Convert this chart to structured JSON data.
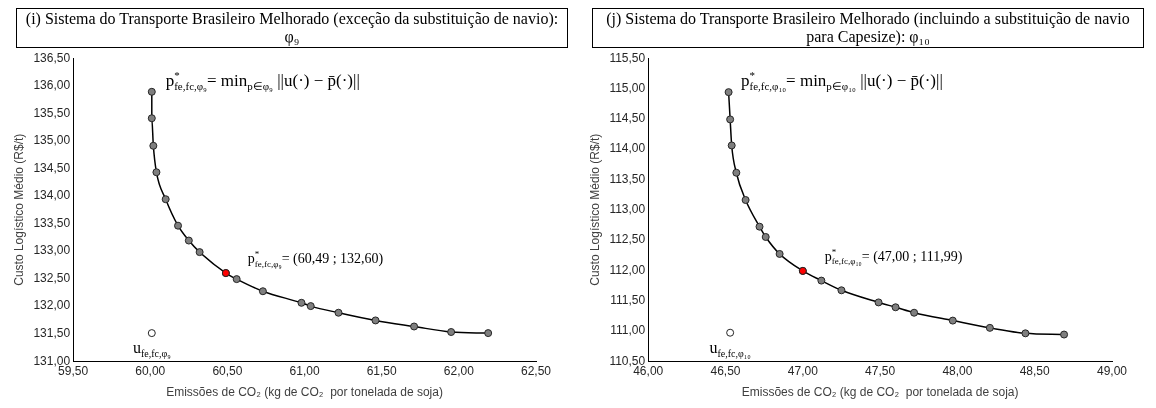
{
  "chart_data": [
    {
      "type": "line",
      "title": "(i) Sistema do Transporte Brasileiro Melhorado (exceção da substituição de navio): φ₉",
      "xlabel": "Emissões de CO₂ (kg de CO₂  por tonelada de soja)",
      "ylabel": "Custo Logístico Médio (R$/t)",
      "xlim": [
        59.5,
        62.5
      ],
      "xticks": [
        {
          "value": 59.5,
          "label": "59,50"
        },
        {
          "value": 60,
          "label": "60,00"
        },
        {
          "value": 60.5,
          "label": "60,50"
        },
        {
          "value": 61,
          "label": "61,00"
        },
        {
          "value": 61.5,
          "label": "61,50"
        },
        {
          "value": 62,
          "label": "62,00"
        },
        {
          "value": 62.5,
          "label": "62,50"
        }
      ],
      "ylim": [
        131,
        136.5
      ],
      "yticks": [
        {
          "value": 131,
          "label": "131,00"
        },
        {
          "value": 131.5,
          "label": "131,50"
        },
        {
          "value": 132,
          "label": "132,00"
        },
        {
          "value": 132.5,
          "label": "132,50"
        },
        {
          "value": 133,
          "label": "133,00"
        },
        {
          "value": 133.5,
          "label": "133,50"
        },
        {
          "value": 134,
          "label": "134,00"
        },
        {
          "value": 134.5,
          "label": "134,50"
        },
        {
          "value": 135,
          "label": "135,00"
        },
        {
          "value": 135.5,
          "label": "135,50"
        },
        {
          "value": 136,
          "label": "136,00"
        },
        {
          "value": 136.5,
          "label": "136,50"
        }
      ],
      "marker": "circle",
      "series": [
        {
          "color": "#7f7f7f",
          "x": [
            60.01,
            60.01,
            60.02,
            60.04,
            60.1,
            60.18,
            60.25,
            60.32,
            60.49,
            60.56,
            60.73,
            60.98,
            61.04,
            61.22,
            61.46,
            61.71,
            61.95,
            62.19
          ],
          "values": [
            135.89,
            135.41,
            134.91,
            134.43,
            133.94,
            133.46,
            133.19,
            132.98,
            132.6,
            132.49,
            132.27,
            132.06,
            132.0,
            131.88,
            131.74,
            131.63,
            131.53,
            131.51
          ]
        },
        {
          "type": "scatter",
          "color": "#ff0000",
          "x": [
            60.49
          ],
          "values": [
            132.6
          ]
        },
        {
          "type": "scatter",
          "color": "#ffffff",
          "x": [
            60.01
          ],
          "values": [
            131.51
          ]
        }
      ],
      "annotations": [
        "p$^{*}$$_{fe,fc,φ₉}$= min$_{p∈φ₉}$ ||u(·) − p̄(·)||",
        {
          "text": "p$^{*}$$_{fe,fc,φ₉}$= (60,49 ; 132,60)",
          "x": 60.49,
          "y": 132.6
        },
        {
          "text": "u$_{fe,fc,φ₉}$",
          "x": 60.01,
          "y": 131.51
        }
      ]
    },
    {
      "type": "line",
      "title": "(j) Sistema do Transporte Brasileiro Melhorado (incluindo a substituição de navio para Capesize): φ₁₀",
      "xlabel": "Emissões de CO₂ (kg de CO₂  por tonelada de soja)",
      "ylabel": "Custo Logístico Médio (R$/t)",
      "xlim": [
        46,
        49
      ],
      "xticks": [
        {
          "value": 46,
          "label": "46,00"
        },
        {
          "value": 46.5,
          "label": "46,50"
        },
        {
          "value": 47,
          "label": "47,00"
        },
        {
          "value": 47.5,
          "label": "47,50"
        },
        {
          "value": 48,
          "label": "48,00"
        },
        {
          "value": 48.5,
          "label": "48,50"
        },
        {
          "value": 49,
          "label": "49,00"
        }
      ],
      "ylim": [
        110.5,
        115.5
      ],
      "yticks": [
        {
          "value": 110.5,
          "label": "110,50"
        },
        {
          "value": 111,
          "label": "111,00"
        },
        {
          "value": 111.5,
          "label": "111,50"
        },
        {
          "value": 112,
          "label": "112,00"
        },
        {
          "value": 112.5,
          "label": "112,50"
        },
        {
          "value": 113,
          "label": "113,00"
        },
        {
          "value": 113.5,
          "label": "113,50"
        },
        {
          "value": 114,
          "label": "114,00"
        },
        {
          "value": 114.5,
          "label": "114,50"
        },
        {
          "value": 115,
          "label": "115,00"
        },
        {
          "value": 115.5,
          "label": "115,50"
        }
      ],
      "marker": "circle",
      "series": [
        {
          "color": "#7f7f7f",
          "x": [
            46.52,
            46.53,
            46.54,
            46.57,
            46.63,
            46.72,
            46.76,
            46.85,
            47.0,
            47.12,
            47.25,
            47.49,
            47.6,
            47.72,
            47.97,
            48.21,
            48.44,
            48.69
          ],
          "values": [
            114.94,
            114.49,
            114.06,
            113.61,
            113.16,
            112.72,
            112.55,
            112.27,
            111.99,
            111.83,
            111.67,
            111.47,
            111.39,
            111.3,
            111.17,
            111.05,
            110.96,
            110.94
          ]
        },
        {
          "type": "scatter",
          "color": "#ff0000",
          "x": [
            47.0
          ],
          "values": [
            111.99
          ]
        },
        {
          "type": "scatter",
          "color": "#ffffff",
          "x": [
            46.53
          ],
          "values": [
            110.97
          ]
        }
      ],
      "annotations": [
        "p$^{*}$$_{fe,fc,φ₁₀}$= min$_{p∈φ₁₀}$ ||u(·) − p̄(·)||",
        {
          "text": "p$^{*}$$_{fe,fc,φ₁₀}$= (47,00 ; 111,99)",
          "x": 47.0,
          "y": 111.99
        },
        {
          "text": "u$_{fe,fc,φ₁₀}$",
          "x": 46.53,
          "y": 110.97
        }
      ]
    }
  ]
}
